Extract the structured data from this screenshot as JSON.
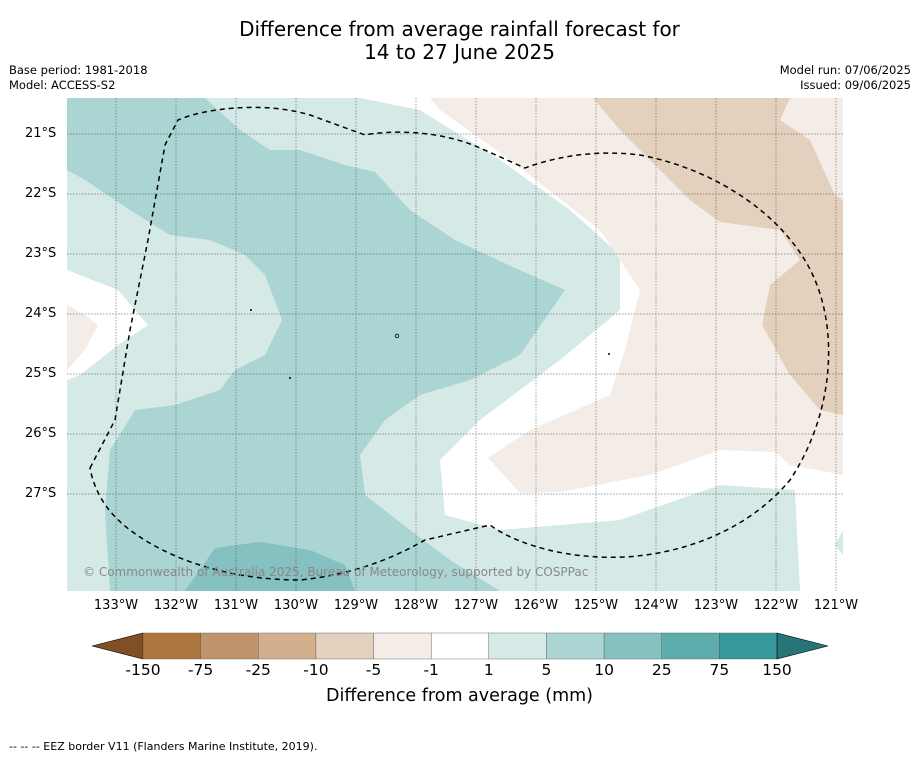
{
  "title_line1": "Difference from average rainfall forecast for",
  "title_line2": "14 to 27 June 2025",
  "base_period": "Base period: 1981-2018",
  "model": "Model: ACCESS-S2",
  "model_run": "Model run: 07/06/2025",
  "issued": "Issued: 09/06/2025",
  "latitudes": [
    "21°S",
    "22°S",
    "23°S",
    "24°S",
    "25°S",
    "26°S",
    "27°S"
  ],
  "longitudes": [
    "133°W",
    "132°W",
    "131°W",
    "130°W",
    "129°W",
    "128°W",
    "127°W",
    "126°W",
    "125°W",
    "124°W",
    "123°W",
    "122°W",
    "121°W"
  ],
  "copyright": "© Commonwealth of Australia 2025, Bureau of Meteorology, supported by COSPPac",
  "colorbar": {
    "ticks": [
      "-150",
      "-75",
      "-25",
      "-10",
      "-5",
      "-1",
      "1",
      "5",
      "10",
      "25",
      "75",
      "150"
    ],
    "colors": [
      "#7f5025",
      "#ad773f",
      "#c0946a",
      "#d2b08e",
      "#e3d0bd",
      "#f4ede7",
      "#ffffff",
      "#d5e9e7",
      "#abd5d3",
      "#84c1c0",
      "#5dadad",
      "#35999a",
      "#277677"
    ],
    "label": "Difference from average (mm)"
  },
  "footnote": "-- -- -- EEZ border V11 (Flanders Marine Institute, 2019)."
}
